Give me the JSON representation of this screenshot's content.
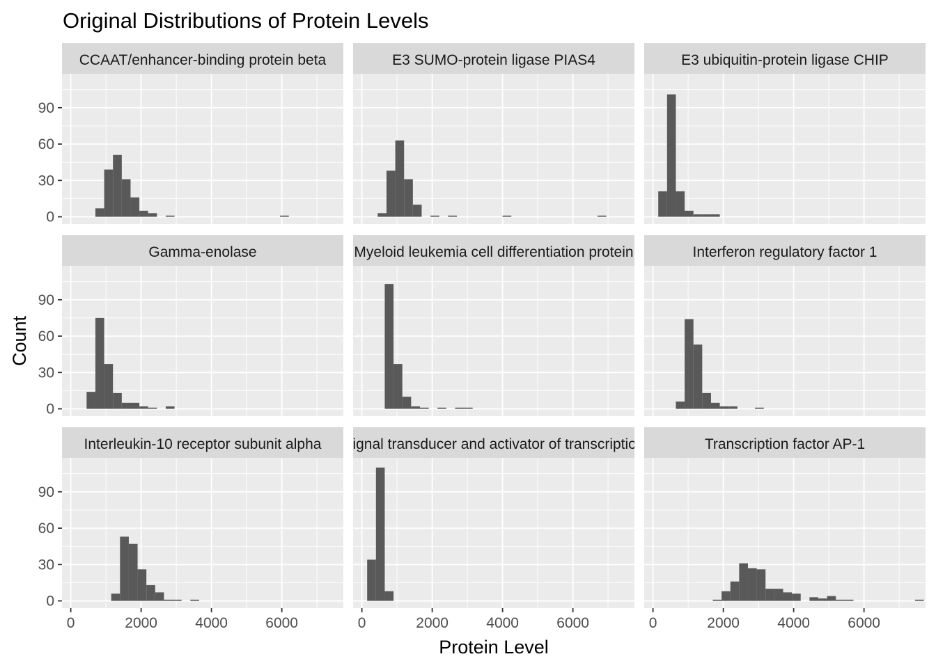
{
  "chart_data": {
    "type": "bar",
    "title": "Original Distributions of Protein Levels",
    "xlabel": "Protein Level",
    "ylabel": "Count",
    "xlim": [
      -250,
      7750
    ],
    "ylim": [
      -6,
      118
    ],
    "x_ticks": [
      0,
      2000,
      4000,
      6000
    ],
    "x_tick_labels": [
      "0",
      "2000",
      "4000",
      "6000"
    ],
    "y_ticks": [
      0,
      30,
      60,
      90
    ],
    "y_tick_labels": [
      "0",
      "30",
      "60",
      "90"
    ],
    "grid": true,
    "facet_layout": {
      "rows": 3,
      "cols": 3
    },
    "panels": [
      {
        "name": "CCAAT/enhancer-binding protein beta",
        "bins": [
          {
            "x0": 700,
            "x1": 950,
            "count": 7
          },
          {
            "x0": 950,
            "x1": 1200,
            "count": 39
          },
          {
            "x0": 1200,
            "x1": 1450,
            "count": 51
          },
          {
            "x0": 1450,
            "x1": 1700,
            "count": 31
          },
          {
            "x0": 1700,
            "x1": 1950,
            "count": 16
          },
          {
            "x0": 1950,
            "x1": 2200,
            "count": 5
          },
          {
            "x0": 2200,
            "x1": 2450,
            "count": 3
          },
          {
            "x0": 2700,
            "x1": 2950,
            "count": 1
          },
          {
            "x0": 5950,
            "x1": 6200,
            "count": 1
          }
        ]
      },
      {
        "name": "E3 SUMO-protein ligase PIAS4",
        "bins": [
          {
            "x0": 450,
            "x1": 700,
            "count": 3
          },
          {
            "x0": 700,
            "x1": 950,
            "count": 38
          },
          {
            "x0": 950,
            "x1": 1200,
            "count": 63
          },
          {
            "x0": 1200,
            "x1": 1450,
            "count": 31
          },
          {
            "x0": 1450,
            "x1": 1700,
            "count": 10
          },
          {
            "x0": 1950,
            "x1": 2200,
            "count": 1
          },
          {
            "x0": 2450,
            "x1": 2700,
            "count": 1
          },
          {
            "x0": 4000,
            "x1": 4250,
            "count": 1
          },
          {
            "x0": 6700,
            "x1": 6950,
            "count": 1
          }
        ]
      },
      {
        "name": "E3 ubiquitin-protein ligase CHIP",
        "bins": [
          {
            "x0": 150,
            "x1": 400,
            "count": 21
          },
          {
            "x0": 400,
            "x1": 650,
            "count": 101
          },
          {
            "x0": 650,
            "x1": 900,
            "count": 21
          },
          {
            "x0": 900,
            "x1": 1150,
            "count": 5
          },
          {
            "x0": 1150,
            "x1": 1400,
            "count": 2
          },
          {
            "x0": 1400,
            "x1": 1650,
            "count": 2
          },
          {
            "x0": 1650,
            "x1": 1900,
            "count": 2
          }
        ]
      },
      {
        "name": "Gamma-enolase",
        "bins": [
          {
            "x0": 450,
            "x1": 700,
            "count": 14
          },
          {
            "x0": 700,
            "x1": 950,
            "count": 75
          },
          {
            "x0": 950,
            "x1": 1200,
            "count": 37
          },
          {
            "x0": 1200,
            "x1": 1450,
            "count": 13
          },
          {
            "x0": 1450,
            "x1": 1700,
            "count": 5
          },
          {
            "x0": 1700,
            "x1": 1950,
            "count": 5
          },
          {
            "x0": 1950,
            "x1": 2200,
            "count": 2
          },
          {
            "x0": 2200,
            "x1": 2450,
            "count": 1
          },
          {
            "x0": 2700,
            "x1": 2950,
            "count": 2
          }
        ]
      },
      {
        "name": "Myeloid leukemia cell differentiation protein",
        "bins": [
          {
            "x0": 650,
            "x1": 900,
            "count": 103
          },
          {
            "x0": 900,
            "x1": 1150,
            "count": 37
          },
          {
            "x0": 1150,
            "x1": 1400,
            "count": 10
          },
          {
            "x0": 1400,
            "x1": 1650,
            "count": 2
          },
          {
            "x0": 1650,
            "x1": 1900,
            "count": 1
          },
          {
            "x0": 2150,
            "x1": 2400,
            "count": 1
          },
          {
            "x0": 2650,
            "x1": 2900,
            "count": 1
          },
          {
            "x0": 2900,
            "x1": 3150,
            "count": 1
          }
        ]
      },
      {
        "name": "Interferon regulatory factor 1",
        "bins": [
          {
            "x0": 650,
            "x1": 900,
            "count": 6
          },
          {
            "x0": 900,
            "x1": 1150,
            "count": 74
          },
          {
            "x0": 1150,
            "x1": 1400,
            "count": 53
          },
          {
            "x0": 1400,
            "x1": 1650,
            "count": 13
          },
          {
            "x0": 1650,
            "x1": 1900,
            "count": 5
          },
          {
            "x0": 1900,
            "x1": 2150,
            "count": 2
          },
          {
            "x0": 2150,
            "x1": 2400,
            "count": 2
          },
          {
            "x0": 2900,
            "x1": 3150,
            "count": 1
          }
        ]
      },
      {
        "name": "Interleukin-10 receptor subunit alpha",
        "bins": [
          {
            "x0": 1150,
            "x1": 1400,
            "count": 6
          },
          {
            "x0": 1400,
            "x1": 1650,
            "count": 53
          },
          {
            "x0": 1650,
            "x1": 1900,
            "count": 47
          },
          {
            "x0": 1900,
            "x1": 2150,
            "count": 26
          },
          {
            "x0": 2150,
            "x1": 2400,
            "count": 13
          },
          {
            "x0": 2400,
            "x1": 2650,
            "count": 7
          },
          {
            "x0": 2650,
            "x1": 2900,
            "count": 1
          },
          {
            "x0": 2900,
            "x1": 3150,
            "count": 1
          },
          {
            "x0": 3400,
            "x1": 3650,
            "count": 1
          }
        ]
      },
      {
        "name": "Signal transducer and activator of transcription",
        "bins": [
          {
            "x0": 150,
            "x1": 400,
            "count": 34
          },
          {
            "x0": 400,
            "x1": 650,
            "count": 110
          },
          {
            "x0": 650,
            "x1": 900,
            "count": 8
          }
        ]
      },
      {
        "name": "Transcription factor AP-1",
        "bins": [
          {
            "x0": 1700,
            "x1": 1950,
            "count": 1
          },
          {
            "x0": 1950,
            "x1": 2200,
            "count": 8
          },
          {
            "x0": 2200,
            "x1": 2450,
            "count": 16
          },
          {
            "x0": 2450,
            "x1": 2700,
            "count": 31
          },
          {
            "x0": 2700,
            "x1": 2950,
            "count": 27
          },
          {
            "x0": 2950,
            "x1": 3200,
            "count": 26
          },
          {
            "x0": 3200,
            "x1": 3450,
            "count": 10
          },
          {
            "x0": 3450,
            "x1": 3700,
            "count": 10
          },
          {
            "x0": 3700,
            "x1": 3950,
            "count": 7
          },
          {
            "x0": 3950,
            "x1": 4200,
            "count": 6
          },
          {
            "x0": 4450,
            "x1": 4700,
            "count": 3
          },
          {
            "x0": 4700,
            "x1": 4950,
            "count": 2
          },
          {
            "x0": 4950,
            "x1": 5200,
            "count": 4
          },
          {
            "x0": 5200,
            "x1": 5450,
            "count": 1
          },
          {
            "x0": 5450,
            "x1": 5700,
            "count": 1
          },
          {
            "x0": 7450,
            "x1": 7700,
            "count": 1
          }
        ]
      }
    ]
  }
}
